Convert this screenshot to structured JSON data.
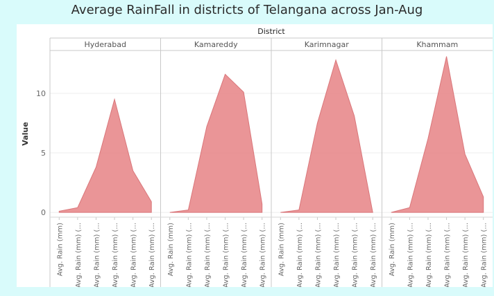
{
  "title": "Average RainFall in districts of Telangana across Jan-Aug",
  "colors": {
    "area_fill": "#e8898c",
    "area_stroke": "#d9767a",
    "background": "#d9fbfb"
  },
  "chart_data": {
    "type": "area",
    "facet_header": "District",
    "ylabel": "Value",
    "ylim": [
      -0.4,
      13.6
    ],
    "yticks": [
      0,
      5,
      10
    ],
    "grid": true,
    "categories": [
      "Avg. Rain (mm)",
      "Avg. Rain (mm) (...",
      "Avg. Rain (mm) (...",
      "Avg. Rain (mm) (...",
      "Avg. Rain (mm) (...",
      "Avg. Rain (mm) (..."
    ],
    "facets": [
      {
        "name": "Hyderabad",
        "values": [
          0.1,
          0.4,
          3.8,
          9.5,
          3.5,
          0.9
        ]
      },
      {
        "name": "Kamareddy",
        "values": [
          0.0,
          0.2,
          7.2,
          11.6,
          10.1,
          0.7
        ]
      },
      {
        "name": "Karimnagar",
        "values": [
          0.0,
          0.2,
          7.5,
          12.8,
          8.1,
          0.0
        ]
      },
      {
        "name": "Khammam",
        "values": [
          0.0,
          0.4,
          6.2,
          13.1,
          4.9,
          1.3
        ]
      }
    ]
  }
}
